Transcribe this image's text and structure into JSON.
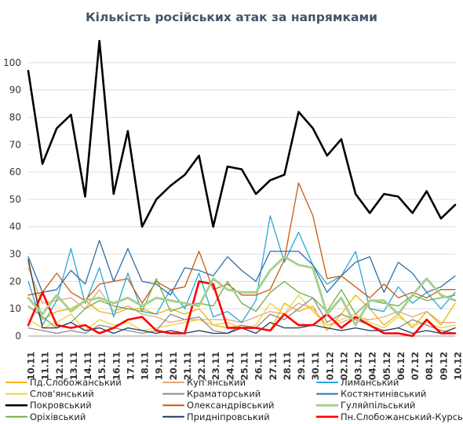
{
  "chart_data": {
    "type": "line",
    "title": "Кількість російських атак за напрямками",
    "xlabel": "",
    "ylabel": "",
    "ylim": [
      0,
      108
    ],
    "yticks": [
      0,
      10,
      20,
      30,
      40,
      50,
      60,
      70,
      80,
      90,
      100
    ],
    "grid": "horizontal",
    "legend_position": "bottom",
    "x": [
      "10.11",
      "11.11",
      "12.11",
      "13.11",
      "14.11",
      "15.11",
      "16.11",
      "17.11",
      "18.11",
      "19.11",
      "20.11",
      "21.11",
      "22.11",
      "23.11",
      "24.11",
      "25.11",
      "26.11",
      "27.11",
      "28.11",
      "29.11",
      "30.11",
      "01.12",
      "02.12",
      "03.12",
      "04.12",
      "05.12",
      "06.12",
      "07.12",
      "08.12",
      "09.12",
      "10.12"
    ],
    "series": [
      {
        "name": "Пд.Слобожанський",
        "color": "#f0b400",
        "width": 1.3,
        "values": [
          27,
          6,
          9,
          10,
          13,
          9,
          8,
          10,
          10,
          8,
          10,
          8,
          10,
          4,
          3,
          4,
          3,
          2,
          12,
          9,
          11,
          2,
          8,
          15,
          10,
          4,
          8,
          3,
          9,
          4,
          12
        ]
      },
      {
        "name": "Куп'янський",
        "color": "#e6a77a",
        "width": 1.3,
        "values": [
          25,
          12,
          13,
          14,
          10,
          17,
          9,
          11,
          8,
          7,
          5,
          6,
          6,
          6,
          6,
          5,
          7,
          9,
          8,
          12,
          10,
          4,
          5,
          7,
          6,
          7,
          9,
          7,
          9,
          5,
          5
        ]
      },
      {
        "name": "Лиманський",
        "color": "#2aa7d8",
        "width": 1.3,
        "values": [
          20,
          4,
          13,
          32,
          12,
          25,
          7,
          23,
          9,
          8,
          17,
          10,
          23,
          7,
          9,
          5,
          13,
          44,
          27,
          38,
          26,
          19,
          22,
          31,
          10,
          9,
          18,
          12,
          16,
          10,
          16
        ]
      },
      {
        "name": "Слов'янський",
        "color": "#f2cf3a",
        "width": 1.3,
        "values": [
          6,
          3,
          5,
          8,
          2,
          6,
          4,
          5,
          2,
          3,
          4,
          5,
          6,
          4,
          5,
          3,
          4,
          12,
          8,
          15,
          9,
          4,
          6,
          8,
          5,
          3,
          7,
          4,
          5,
          3,
          4
        ]
      },
      {
        "name": "Краматорський",
        "color": "#8c8c8c",
        "width": 1.3,
        "values": [
          3,
          2,
          1,
          2,
          1,
          4,
          3,
          2,
          1,
          2,
          8,
          6,
          7,
          2,
          1,
          4,
          3,
          8,
          6,
          10,
          14,
          5,
          8,
          6,
          4,
          2,
          3,
          6,
          4,
          2,
          1
        ]
      },
      {
        "name": "Костянтинівський",
        "color": "#2e6fa7",
        "width": 1.3,
        "values": [
          29,
          16,
          17,
          24,
          19,
          35,
          20,
          32,
          20,
          19,
          15,
          25,
          24,
          22,
          29,
          24,
          20,
          31,
          31,
          31,
          26,
          16,
          22,
          27,
          29,
          16,
          27,
          23,
          16,
          18,
          22
        ]
      },
      {
        "name": "Покровський",
        "color": "#000000",
        "width": 2.6,
        "values": [
          97,
          63,
          76,
          81,
          51,
          108,
          52,
          75,
          40,
          50,
          55,
          59,
          66,
          40,
          62,
          61,
          52,
          57,
          59,
          82,
          76,
          66,
          72,
          52,
          45,
          52,
          51,
          45,
          53,
          43,
          48
        ]
      },
      {
        "name": "Олександрівський",
        "color": "#c55a11",
        "width": 1.3,
        "values": [
          15,
          16,
          23,
          16,
          13,
          19,
          20,
          21,
          12,
          20,
          17,
          18,
          31,
          17,
          19,
          15,
          15,
          17,
          28,
          56,
          44,
          21,
          22,
          18,
          14,
          19,
          14,
          16,
          14,
          17,
          17
        ]
      },
      {
        "name": "Гуляйпільський",
        "color": "#a9d08e",
        "width": 3.0,
        "values": [
          14,
          8,
          15,
          9,
          13,
          14,
          12,
          14,
          11,
          14,
          13,
          12,
          11,
          21,
          17,
          16,
          16,
          24,
          29,
          26,
          25,
          8,
          14,
          4,
          13,
          13,
          8,
          15,
          21,
          15,
          13
        ]
      },
      {
        "name": "Оріхівський",
        "color": "#70ad47",
        "width": 1.3,
        "values": [
          11,
          7,
          3,
          5,
          10,
          13,
          11,
          10,
          9,
          21,
          9,
          11,
          12,
          11,
          20,
          12,
          9,
          16,
          20,
          16,
          14,
          9,
          17,
          8,
          13,
          12,
          11,
          15,
          13,
          14,
          15
        ]
      },
      {
        "name": "Придніпровський",
        "color": "#1f3864",
        "width": 1.3,
        "values": [
          28,
          3,
          3,
          5,
          2,
          3,
          1,
          3,
          2,
          1,
          2,
          1,
          2,
          1,
          1,
          3,
          1,
          5,
          3,
          3,
          4,
          3,
          2,
          3,
          2,
          2,
          3,
          1,
          2,
          1,
          3
        ]
      },
      {
        "name": "Пн.Слобожанський-Курський",
        "color": "#ff0000",
        "width": 2.6,
        "values": [
          4,
          16,
          4,
          3,
          4,
          1,
          3,
          6,
          7,
          2,
          1,
          1,
          20,
          19,
          3,
          3,
          3,
          2,
          8,
          4,
          4,
          8,
          3,
          7,
          4,
          1,
          1,
          0,
          6,
          1,
          1
        ]
      }
    ]
  }
}
